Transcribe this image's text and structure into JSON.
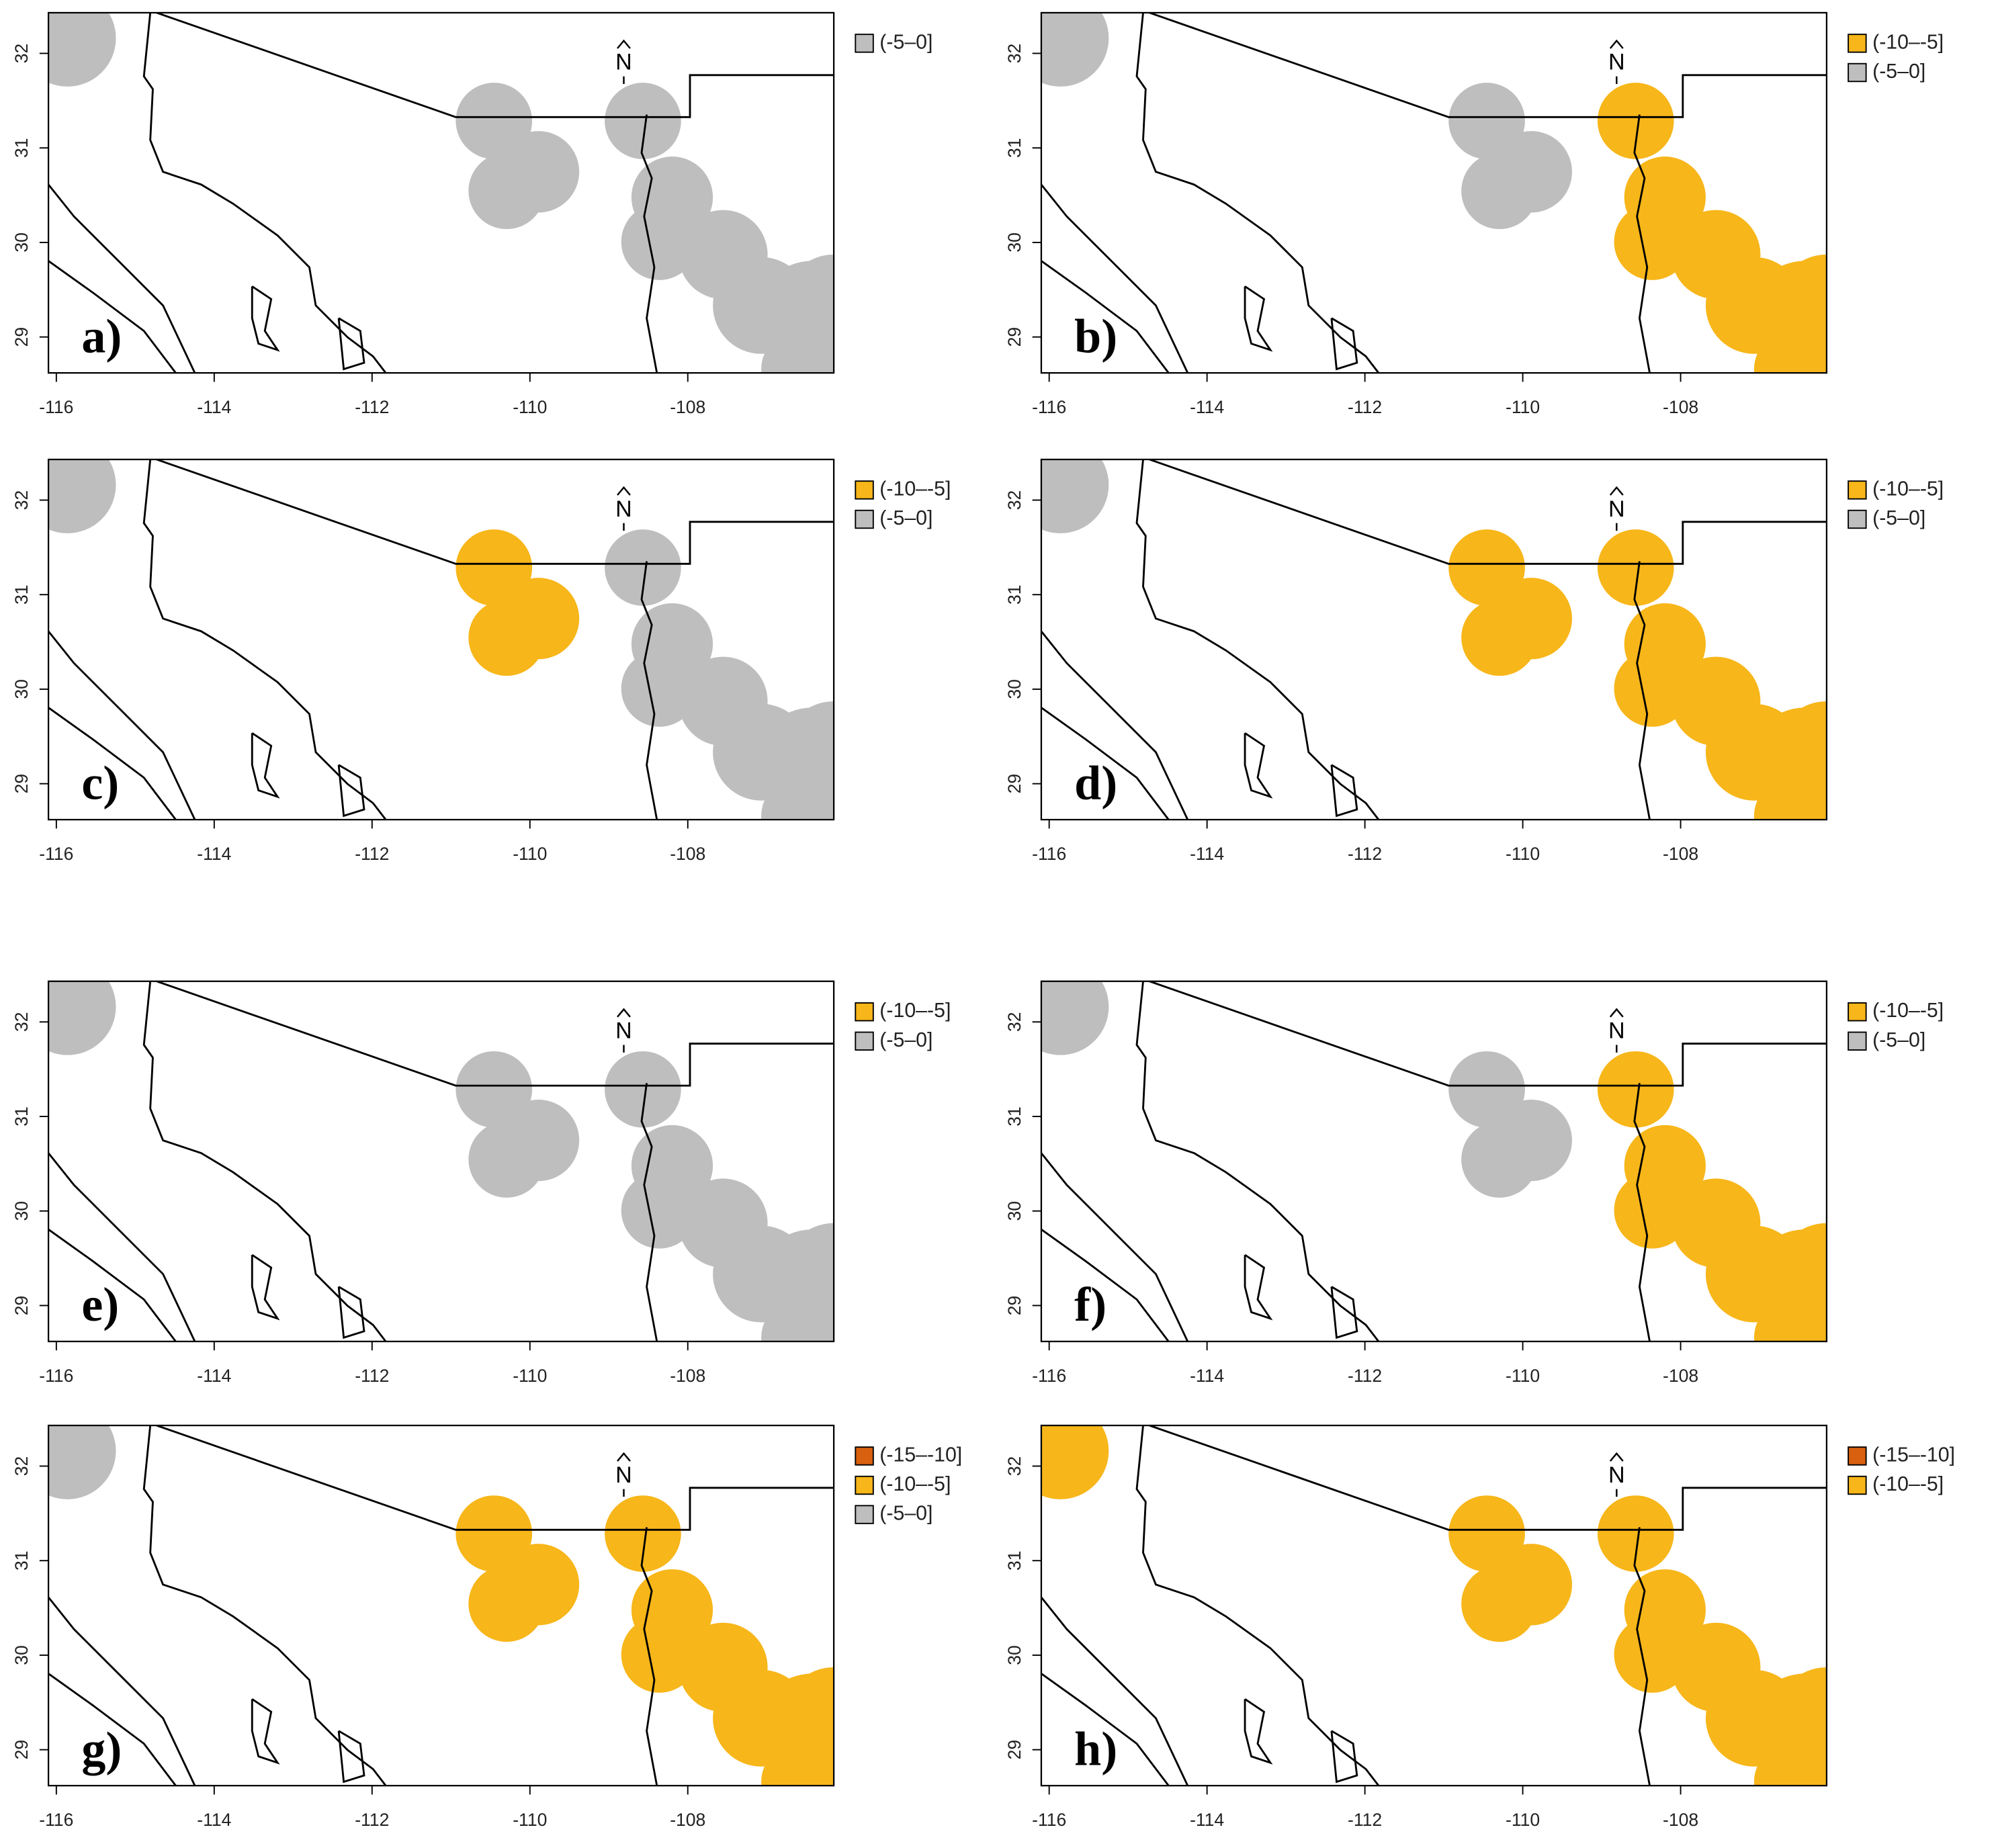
{
  "north_label": "N",
  "xlim": [
    -116.1,
    -106.15
  ],
  "ylim": [
    28.62,
    32.43
  ],
  "xticks": [
    -116,
    -114,
    -112,
    -110,
    -108
  ],
  "yticks": [
    29,
    30,
    31,
    32
  ],
  "panels": [
    {
      "label": "a)",
      "legend": [
        {
          "label": "(-5–0]",
          "color": "#bebebe"
        }
      ]
    },
    {
      "label": "b)",
      "legend": [
        {
          "label": "(-10–-5]",
          "color": "#f7b619"
        },
        {
          "label": "(-5–0]",
          "color": "#bebebe"
        }
      ]
    },
    {
      "label": "c)",
      "legend": [
        {
          "label": "(-10–-5]",
          "color": "#f7b619"
        },
        {
          "label": "(-5–0]",
          "color": "#bebebe"
        }
      ]
    },
    {
      "label": "d)",
      "legend": [
        {
          "label": "(-10–-5]",
          "color": "#f7b619"
        },
        {
          "label": "(-5–0]",
          "color": "#bebebe"
        }
      ]
    },
    {
      "label": "e)",
      "legend": [
        {
          "label": "(-10–-5]",
          "color": "#f7b619"
        },
        {
          "label": "(-5–0]",
          "color": "#bebebe"
        }
      ]
    },
    {
      "label": "f)",
      "legend": [
        {
          "label": "(-10–-5]",
          "color": "#f7b619"
        },
        {
          "label": "(-5–0]",
          "color": "#bebebe"
        }
      ]
    },
    {
      "label": "g)",
      "legend": [
        {
          "label": "(-15–-10]",
          "color": "#d9600e"
        },
        {
          "label": "(-10–-5]",
          "color": "#f7b619"
        },
        {
          "label": "(-5–0]",
          "color": "#bebebe"
        }
      ]
    },
    {
      "label": "h)",
      "legend": [
        {
          "label": "(-15–-10]",
          "color": "#d9600e"
        },
        {
          "label": "(-10–-5]",
          "color": "#f7b619"
        }
      ]
    }
  ]
}
